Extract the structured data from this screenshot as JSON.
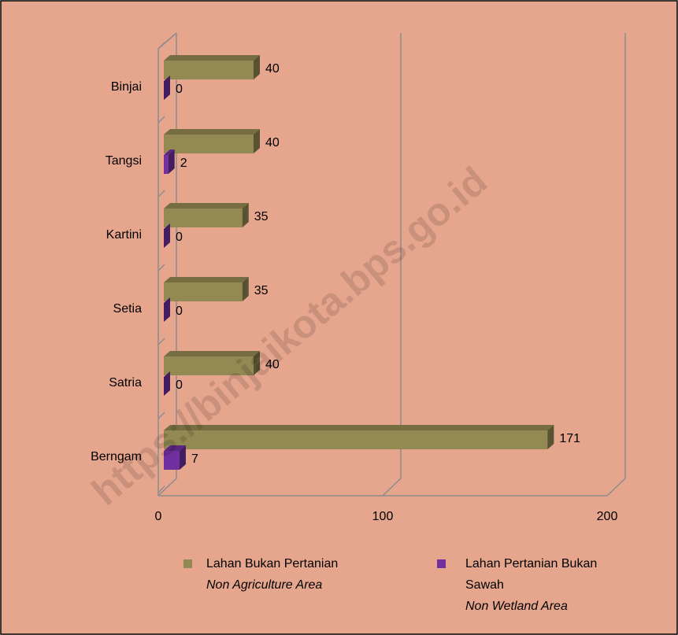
{
  "chart_data": {
    "type": "bar",
    "orientation": "horizontal",
    "categories": [
      "Binjai",
      "Tangsi",
      "Kartini",
      "Setia",
      "Satria",
      "Berngam"
    ],
    "series": [
      {
        "name": "Lahan Bukan Pertanian",
        "name_en": "Non Agriculture Area",
        "color": "#938953",
        "values": [
          40,
          40,
          35,
          35,
          40,
          171
        ]
      },
      {
        "name": "Lahan Pertanian Bukan Sawah",
        "name_en": "Non Wetland Area",
        "color": "#7030a0",
        "values": [
          0,
          2,
          0,
          0,
          0,
          7
        ]
      }
    ],
    "xlim": [
      0,
      200
    ],
    "xticks": [
      0,
      100,
      200
    ],
    "grid": true,
    "watermark": "https://binjaikota.bps.go.id"
  }
}
